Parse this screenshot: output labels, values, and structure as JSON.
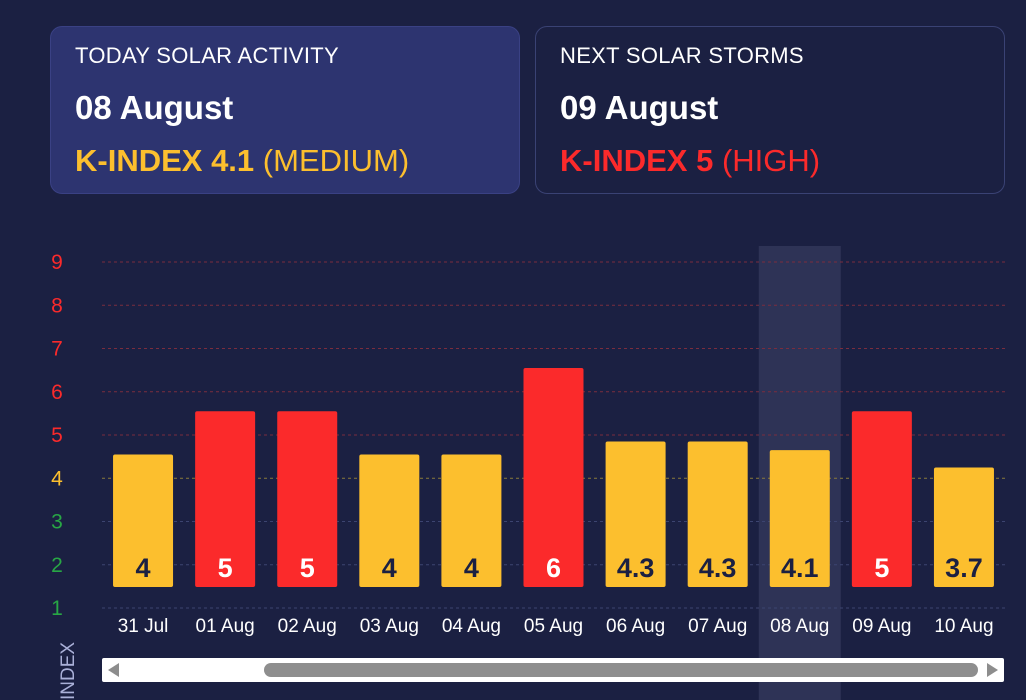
{
  "today_card": {
    "label": "TODAY SOLAR ACTIVITY",
    "date": "08 August",
    "kindex_prefix": "K-INDEX 4.1",
    "kindex_level": "(MEDIUM)"
  },
  "next_card": {
    "label": "NEXT SOLAR STORMS",
    "date": "09 August",
    "kindex_prefix": "K-INDEX 5",
    "kindex_level": "(HIGH)"
  },
  "colors": {
    "medium": "#fcbf2e",
    "high": "#fb2a2b",
    "low": "#28a745",
    "background": "#1b2042",
    "highlight": "#2e3356"
  },
  "chart_data": {
    "type": "bar",
    "categories": [
      "31 Jul",
      "01 Aug",
      "02 Aug",
      "03 Aug",
      "04 Aug",
      "05 Aug",
      "06 Aug",
      "07 Aug",
      "08 Aug",
      "09 Aug",
      "10 Aug"
    ],
    "values": [
      4,
      5,
      5,
      4,
      4,
      6,
      4.3,
      4.3,
      4.1,
      5,
      3.7
    ],
    "value_labels": [
      "4",
      "5",
      "5",
      "4",
      "4",
      "6",
      "4.3",
      "4.3",
      "4.1",
      "5",
      "3.7"
    ],
    "bar_levels": [
      "medium",
      "high",
      "high",
      "medium",
      "medium",
      "high",
      "medium",
      "medium",
      "medium",
      "high",
      "medium"
    ],
    "highlighted_category": "08 Aug",
    "y_ticks": [
      "1",
      "2",
      "3",
      "4",
      "5",
      "6",
      "7",
      "8",
      "9"
    ],
    "y_tick_levels": [
      "low",
      "low",
      "low",
      "medium",
      "high",
      "high",
      "high",
      "high",
      "high"
    ],
    "ylabel": "INDEX",
    "ylim": [
      1,
      9
    ],
    "grid": true
  },
  "scrollbar": {
    "left_arrow_icon": "chevron-left-icon",
    "right_arrow_icon": "chevron-right-icon"
  }
}
